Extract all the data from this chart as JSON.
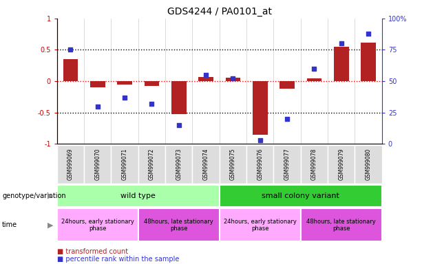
{
  "title": "GDS4244 / PA0101_at",
  "samples": [
    "GSM999069",
    "GSM999070",
    "GSM999071",
    "GSM999072",
    "GSM999073",
    "GSM999074",
    "GSM999075",
    "GSM999076",
    "GSM999077",
    "GSM999078",
    "GSM999079",
    "GSM999080"
  ],
  "transformed_count": [
    0.35,
    -0.1,
    -0.05,
    -0.08,
    -0.52,
    0.07,
    0.06,
    -0.85,
    -0.12,
    0.04,
    0.55,
    0.62
  ],
  "percentile_rank": [
    75,
    30,
    37,
    32,
    15,
    55,
    52,
    3,
    20,
    60,
    80,
    88
  ],
  "bar_color": "#B22222",
  "dot_color": "#3333CC",
  "ylim_left": [
    -1,
    1
  ],
  "ylim_right": [
    0,
    100
  ],
  "yticks_left": [
    -1,
    -0.5,
    0,
    0.5,
    1
  ],
  "yticks_right": [
    0,
    25,
    50,
    75,
    100
  ],
  "groups": [
    {
      "label": "wild type",
      "start": 0,
      "end": 5,
      "color": "#AAFFAA"
    },
    {
      "label": "small colony variant",
      "start": 6,
      "end": 11,
      "color": "#33CC33"
    }
  ],
  "time_groups": [
    {
      "label": "24hours, early stationary\nphase",
      "start": 0,
      "end": 2,
      "color": "#FFAAFF"
    },
    {
      "label": "48hours, late stationary\nphase",
      "start": 3,
      "end": 5,
      "color": "#DD55DD"
    },
    {
      "label": "24hours, early stationary\nphase",
      "start": 6,
      "end": 8,
      "color": "#FFAAFF"
    },
    {
      "label": "48hours, late stationary\nphase",
      "start": 9,
      "end": 11,
      "color": "#DD55DD"
    }
  ],
  "legend_items": [
    {
      "label": "transformed count",
      "color": "#B22222"
    },
    {
      "label": "percentile rank within the sample",
      "color": "#3333CC"
    }
  ],
  "left_axis_color": "#CC0000",
  "right_axis_color": "#3333CC",
  "genotype_label": "genotype/variation",
  "time_label": "time"
}
